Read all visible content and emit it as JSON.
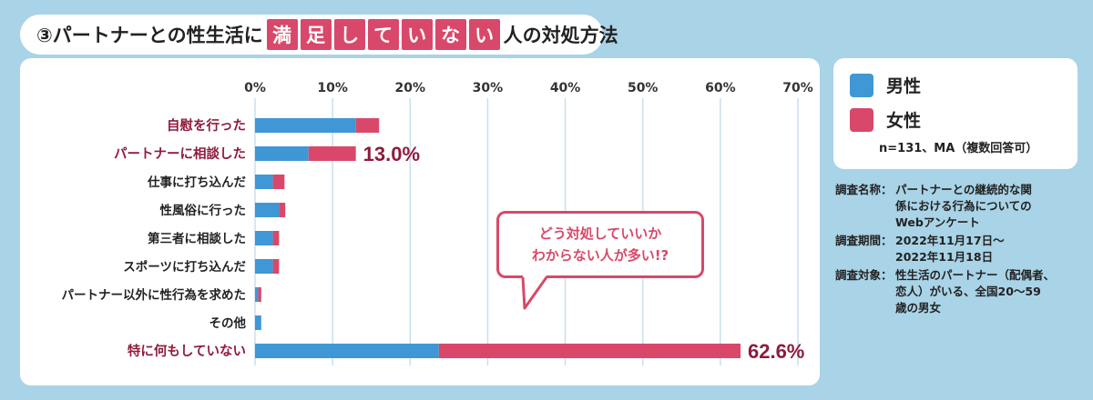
{
  "title": {
    "prefix": "③パートナーとの性生活に",
    "highlight": [
      "満",
      "足",
      "し",
      "て",
      "い",
      "な",
      "い"
    ],
    "suffix": "人の対処方法"
  },
  "legend": {
    "items": [
      {
        "label": "男性",
        "color": "#3f97d6"
      },
      {
        "label": "女性",
        "color": "#d9486a"
      }
    ],
    "note": "n=131、MA（複数回答可）"
  },
  "survey": [
    {
      "key": "調査名称：",
      "lines": [
        "パートナーとの継続的な関",
        "係における行為についての",
        "Webアンケート"
      ]
    },
    {
      "key": "調査期間：",
      "lines": [
        "2022年11月17日〜",
        "2022年11月18日"
      ]
    },
    {
      "key": "調査対象：",
      "lines": [
        "性生活のパートナー（配偶者、",
        "恋人）がいる、全国20〜59",
        "歳の男女"
      ]
    }
  ],
  "callout": {
    "lines": [
      "どう対処していいか",
      "わからない人が多い!?"
    ]
  },
  "chart_data": {
    "type": "bar",
    "orientation": "horizontal",
    "stacked": true,
    "categories": [
      "自慰を行った",
      "パートナーに相談した",
      "仕事に打ち込んだ",
      "性風俗に行った",
      "第三者に相談した",
      "スポーツに打ち込んだ",
      "パートナー以外に性行為を求めた",
      "その他",
      "特に何もしていない"
    ],
    "highlighted_categories": [
      0,
      1,
      8
    ],
    "series": [
      {
        "name": "男性",
        "values": [
          13.0,
          6.9,
          2.3,
          3.1,
          2.3,
          2.3,
          0.4,
          0.8,
          23.7
        ]
      },
      {
        "name": "女性",
        "values": [
          3.0,
          6.1,
          1.5,
          0.8,
          0.8,
          0.8,
          0.4,
          0.0,
          38.9
        ]
      }
    ],
    "data_labels": [
      {
        "category_index": 1,
        "text": "13.0%"
      },
      {
        "category_index": 8,
        "text": "62.6%"
      }
    ],
    "xticks": [
      "0%",
      "10%",
      "20%",
      "30%",
      "40%",
      "50%",
      "60%",
      "70%"
    ],
    "xlim": [
      0,
      70
    ],
    "grid": true,
    "colors": {
      "male": "#3f97d6",
      "female": "#d9486a",
      "highlight_text": "#8e1b3c",
      "grid": "#c7e0ec"
    }
  }
}
